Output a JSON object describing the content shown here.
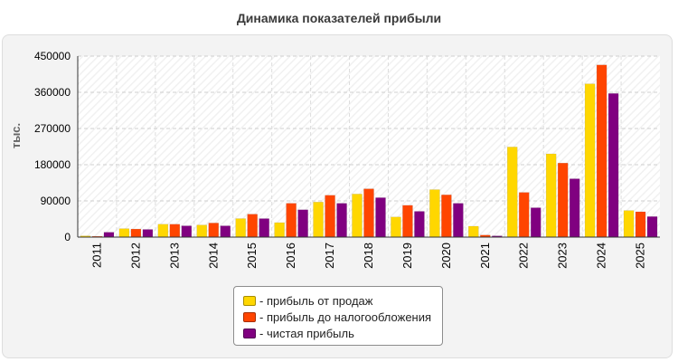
{
  "chart_data": {
    "type": "bar",
    "title": "Динамика показателей прибыли",
    "ylabel": "тыс.",
    "xlabel": "",
    "ylim": [
      0,
      450000
    ],
    "yticks": [
      0,
      90000,
      180000,
      270000,
      360000,
      450000
    ],
    "grid": true,
    "legend_position": "bottom-center",
    "categories": [
      "2011",
      "2012",
      "2013",
      "2014",
      "2015",
      "2016",
      "2017",
      "2018",
      "2019",
      "2020",
      "2021",
      "2022",
      "2023",
      "2024",
      "2025"
    ],
    "series": [
      {
        "name": "- прибыль от продаж",
        "color": "#ffd700",
        "values": [
          3000,
          21000,
          32000,
          30000,
          46000,
          36000,
          87000,
          107000,
          50000,
          118000,
          27000,
          224000,
          207000,
          381000,
          66000
        ]
      },
      {
        "name": "- прибыль до налогообложения",
        "color": "#ff4500",
        "values": [
          2000,
          20000,
          32000,
          35000,
          57000,
          84000,
          104000,
          120000,
          79000,
          105000,
          5000,
          111000,
          184000,
          428000,
          63000
        ]
      },
      {
        "name": "- чистая прибыль",
        "color": "#800080",
        "values": [
          12000,
          19000,
          28000,
          28000,
          46000,
          68000,
          84000,
          98000,
          64000,
          84000,
          3000,
          73000,
          145000,
          357000,
          51000
        ]
      }
    ]
  }
}
